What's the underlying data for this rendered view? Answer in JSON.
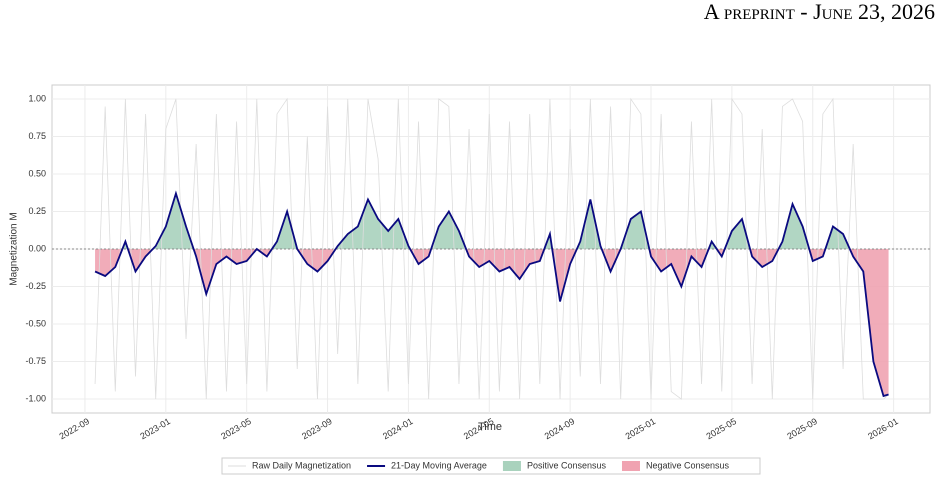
{
  "header": "A preprint - June 23, 2026",
  "chart_data": {
    "type": "line",
    "xlabel": "Time",
    "ylabel": "Magnetization M",
    "x": [
      0.5,
      1,
      1.5,
      2,
      2.5,
      3,
      3.5,
      4,
      4.5,
      5,
      5.5,
      6,
      6.5,
      7,
      7.5,
      8,
      8.5,
      9,
      9.5,
      10,
      10.5,
      11,
      11.5,
      12,
      12.5,
      13,
      13.5,
      14,
      14.5,
      15,
      15.5,
      16,
      16.5,
      17,
      17.5,
      18,
      18.5,
      19,
      19.5,
      20,
      20.5,
      21,
      21.5,
      22,
      22.5,
      23,
      23.5,
      24,
      24.5,
      25,
      25.5,
      26,
      26.5,
      27,
      27.5,
      28,
      28.5,
      29,
      29.5,
      30,
      30.5,
      31,
      31.5,
      32,
      32.5,
      33,
      33.5,
      34,
      34.5,
      35,
      35.5,
      36,
      36.5,
      37,
      37.5,
      38,
      38.5,
      39,
      39.5,
      39.75
    ],
    "series": [
      {
        "name": "Raw Daily Magnetization",
        "color": "#dddddd",
        "values": [
          -0.9,
          0.95,
          -0.95,
          1,
          -0.85,
          0.9,
          -1,
          0.8,
          1,
          -0.6,
          0.7,
          -1,
          0.9,
          -0.95,
          0.85,
          -0.9,
          1,
          -0.95,
          0.9,
          1,
          -0.8,
          0.75,
          -1,
          0.95,
          -0.7,
          1,
          -0.9,
          1,
          0.6,
          -0.95,
          1,
          -0.9,
          0.85,
          -1,
          1,
          0.95,
          -0.9,
          0.8,
          -1,
          0.9,
          -0.95,
          0.85,
          -1,
          0.9,
          -0.9,
          1,
          -1,
          0.8,
          -0.85,
          1,
          -0.9,
          0.95,
          -1,
          1,
          0.9,
          -1,
          0.9,
          -0.95,
          -1,
          0.85,
          -0.9,
          1,
          -0.95,
          1,
          0.9,
          -0.9,
          0.8,
          -1,
          0.95,
          1,
          0.85,
          -1,
          0.9,
          1,
          -0.8,
          0.7,
          -1,
          -1,
          -1,
          -0.97
        ]
      },
      {
        "name": "21-Day Moving Average",
        "color": "#0a0a80",
        "values": [
          -0.15,
          -0.18,
          -0.12,
          0.05,
          -0.15,
          -0.05,
          0.02,
          0.15,
          0.37,
          0.15,
          -0.05,
          -0.3,
          -0.1,
          -0.05,
          -0.1,
          -0.08,
          0.0,
          -0.05,
          0.05,
          0.25,
          0.0,
          -0.1,
          -0.15,
          -0.08,
          0.02,
          0.1,
          0.15,
          0.33,
          0.2,
          0.12,
          0.2,
          0.02,
          -0.1,
          -0.05,
          0.15,
          0.25,
          0.12,
          -0.05,
          -0.12,
          -0.08,
          -0.15,
          -0.12,
          -0.2,
          -0.1,
          -0.08,
          0.1,
          -0.35,
          -0.1,
          0.05,
          0.33,
          0.02,
          -0.15,
          0.0,
          0.2,
          0.25,
          -0.05,
          -0.15,
          -0.1,
          -0.25,
          -0.05,
          -0.12,
          0.05,
          -0.05,
          0.12,
          0.2,
          -0.05,
          -0.12,
          -0.08,
          0.05,
          0.3,
          0.15,
          -0.08,
          -0.05,
          0.15,
          0.1,
          -0.05,
          -0.15,
          -0.75,
          -0.98,
          -0.97
        ]
      }
    ],
    "fills": [
      {
        "name": "Positive Consensus",
        "color": "#a9d2bd"
      },
      {
        "name": "Negative Consensus",
        "color": "#f0a3b1"
      }
    ],
    "xlim": [
      -1.63,
      41.8
    ],
    "xticks": [
      {
        "value": 0,
        "label": "2022-09"
      },
      {
        "value": 4,
        "label": "2023-01"
      },
      {
        "value": 8,
        "label": "2023-05"
      },
      {
        "value": 12,
        "label": "2023-09"
      },
      {
        "value": 16,
        "label": "2024-01"
      },
      {
        "value": 20,
        "label": "2024-05"
      },
      {
        "value": 24,
        "label": "2024-09"
      },
      {
        "value": 28,
        "label": "2025-01"
      },
      {
        "value": 32,
        "label": "2025-05"
      },
      {
        "value": 36,
        "label": "2025-09"
      },
      {
        "value": 40,
        "label": "2026-01"
      }
    ],
    "ylim": [
      -1.093,
      1.093
    ],
    "yticks": [
      {
        "value": -1,
        "label": "-1.00"
      },
      {
        "value": -0.75,
        "label": "-0.75"
      },
      {
        "value": -0.5,
        "label": "-0.50"
      },
      {
        "value": -0.25,
        "label": "-0.25"
      },
      {
        "value": 0,
        "label": "0.00"
      },
      {
        "value": 0.25,
        "label": "0.25"
      },
      {
        "value": 0.5,
        "label": "0.50"
      },
      {
        "value": 0.75,
        "label": "0.75"
      },
      {
        "value": 1,
        "label": "1.00"
      }
    ],
    "grid": true,
    "legend": "bottom"
  }
}
